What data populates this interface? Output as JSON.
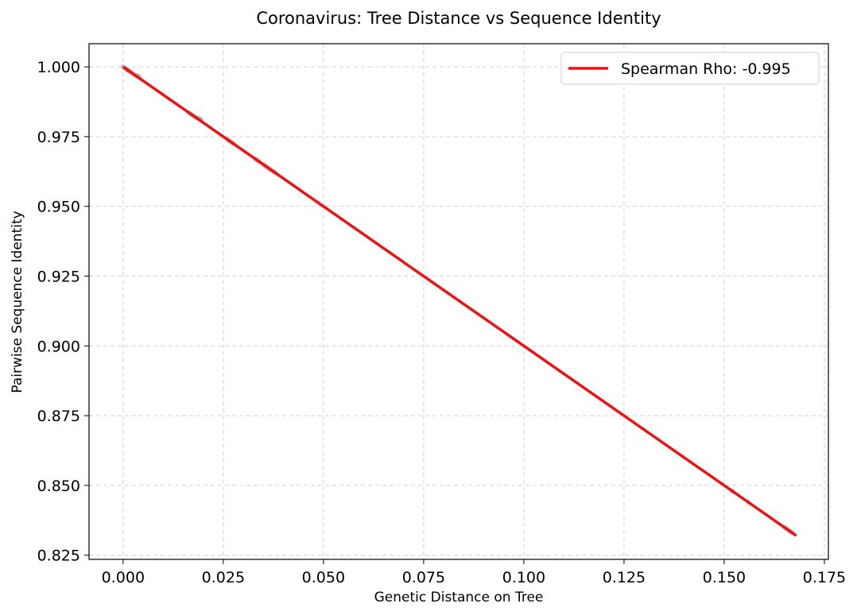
{
  "chart_data": {
    "type": "scatter",
    "title": "Coronavirus: Tree Distance vs Sequence Identity",
    "xlabel": "Genetic Distance on Tree",
    "ylabel": "Pairwise Sequence Identity",
    "xlim": [
      -0.0085,
      0.176
    ],
    "ylim": [
      0.8235,
      1.0083
    ],
    "xticks": [
      0.0,
      0.025,
      0.05,
      0.075,
      0.1,
      0.125,
      0.15,
      0.175
    ],
    "xtick_labels": [
      "0.000",
      "0.025",
      "0.050",
      "0.075",
      "0.100",
      "0.125",
      "0.150",
      "0.175"
    ],
    "yticks": [
      0.825,
      0.85,
      0.875,
      0.9,
      0.925,
      0.95,
      0.975,
      1.0
    ],
    "ytick_labels": [
      "0.825",
      "0.850",
      "0.875",
      "0.900",
      "0.925",
      "0.950",
      "0.975",
      "1.000"
    ],
    "grid": true,
    "legend_position": "top-right",
    "points": {
      "color": "#888888",
      "x": [
        0.0,
        0.0005,
        0.001,
        0.0012,
        0.0015,
        0.002,
        0.0025,
        0.003,
        0.0035,
        0.004,
        0.0165,
        0.017,
        0.0175,
        0.018,
        0.0185,
        0.019,
        0.0195,
        0.026,
        0.0265,
        0.027,
        0.0275,
        0.033,
        0.0335,
        0.034,
        0.035,
        0.0355,
        0.036,
        0.0365,
        0.037,
        0.0375,
        0.038,
        0.152,
        0.156,
        0.165,
        0.1655,
        0.166,
        0.1665,
        0.167
      ],
      "y": [
        1.0,
        0.9995,
        0.999,
        0.9988,
        0.9985,
        0.998,
        0.9975,
        0.997,
        0.9968,
        0.9965,
        0.9835,
        0.983,
        0.9825,
        0.982,
        0.9817,
        0.9815,
        0.981,
        0.974,
        0.9735,
        0.973,
        0.9725,
        0.967,
        0.9665,
        0.966,
        0.965,
        0.9645,
        0.964,
        0.9635,
        0.963,
        0.9625,
        0.962,
        0.848,
        0.844,
        0.835,
        0.8345,
        0.834,
        0.8335,
        0.833
      ]
    },
    "series": [
      {
        "name": "Spearman Rho: -0.995",
        "type": "line",
        "color": "#ee1111",
        "x": [
          0.0,
          0.168
        ],
        "y": [
          1.0,
          0.832
        ]
      }
    ]
  }
}
